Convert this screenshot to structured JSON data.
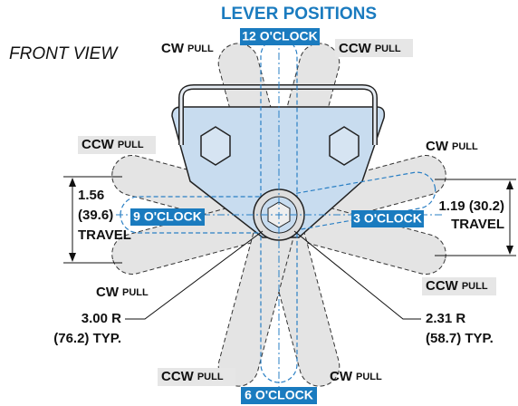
{
  "title": "LEVER POSITIONS",
  "view_label": "FRONT VIEW",
  "positions": {
    "twelve": "12 O'CLOCK",
    "nine": "9 O'CLOCK",
    "three": "3 O'CLOCK",
    "six": "6 O'CLOCK"
  },
  "pull_labels": [
    {
      "dir": "CW",
      "word": "PULL"
    },
    {
      "dir": "CCW",
      "word": "PULL"
    },
    {
      "dir": "CCW",
      "word": "PULL"
    },
    {
      "dir": "CW",
      "word": "PULL"
    },
    {
      "dir": "CW",
      "word": "PULL"
    },
    {
      "dir": "CCW",
      "word": "PULL"
    },
    {
      "dir": "CCW",
      "word": "PULL"
    },
    {
      "dir": "CW",
      "word": "PULL"
    }
  ],
  "dimensions": {
    "left_travel": [
      "1.56",
      "(39.6)",
      "TRAVEL"
    ],
    "right_travel": [
      "1.19 (30.2)",
      "TRAVEL"
    ],
    "long_radius": [
      "3.00 R",
      "(76.2) TYP."
    ],
    "short_radius": [
      "2.31 R",
      "(58.7) TYP."
    ]
  }
}
